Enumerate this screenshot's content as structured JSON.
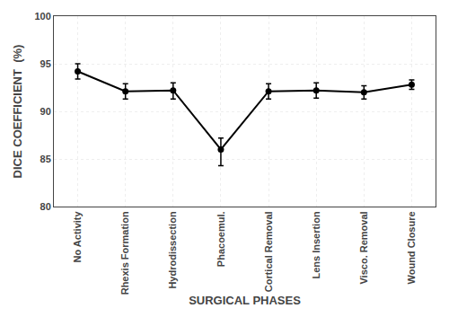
{
  "chart_data": {
    "type": "line",
    "categories": [
      "No Activity",
      "Rhexis Formation",
      "Hydrodissection",
      "Phacoemul.",
      "Cortical Removal",
      "Lens Insertion",
      "Visco. Removal",
      "Wound Closure"
    ],
    "values": [
      94.2,
      92.1,
      92.2,
      86.0,
      92.1,
      92.2,
      92.0,
      92.8
    ],
    "errors_upper": [
      0.8,
      0.8,
      0.8,
      1.2,
      0.8,
      0.8,
      0.7,
      0.5
    ],
    "errors_lower": [
      0.8,
      0.8,
      0.9,
      1.7,
      0.8,
      0.8,
      0.7,
      0.5
    ],
    "ylabel": "DICE COEFFICIENT  (%)",
    "xlabel": "SURGICAL PHASES",
    "ylim": [
      80,
      100
    ],
    "yticks": [
      80,
      85,
      90,
      95,
      100
    ],
    "color": "#000000",
    "marker": "circle",
    "line_style": "solid",
    "grid": true
  }
}
